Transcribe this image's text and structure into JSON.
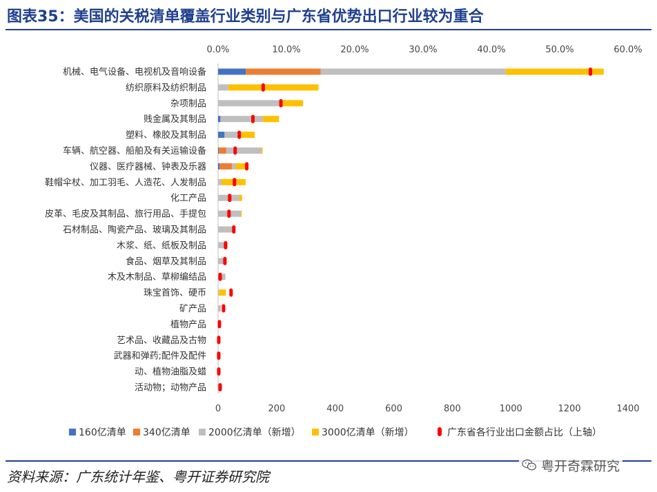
{
  "header": {
    "title": "图表35：美国的关税清单覆盖行业类别与广东省优势出口行业较为重合"
  },
  "footer": {
    "source": "资料来源：广东统计年鉴、粤开证券研究院",
    "watermark_text": "粤开奇霖研究",
    "watermark_icon": "wechat-icon"
  },
  "colors": {
    "title": "#1f3f8f",
    "s160": "#4472c4",
    "s340": "#ed7d31",
    "s2000": "#bfbfbf",
    "s3000": "#ffc000",
    "share": "#ff0000"
  },
  "chart_data": {
    "type": "bar",
    "orientation": "horizontal",
    "stacked": true,
    "categories": [
      "机械、电气设备、电视机及音响设备",
      "纺织原料及纺织制品",
      "杂项制品",
      "贱金属及其制品",
      "塑料、橡胶及其制品",
      "车辆、航空器、船舶及有关运输设备",
      "仪器、医疗器械、钟表及乐器",
      "鞋帽伞杖、加工羽毛、人造花、人发制品",
      "化工产品",
      "皮革、毛皮及其制品、旅行用品、手提包",
      "石材制品、陶瓷产品、玻璃及其制品",
      "木浆、纸、纸板及制品",
      "食品、烟草及其制品",
      "木及木制品、草柳编结品",
      "珠宝首饰、硬币",
      "矿产品",
      "植物产品",
      "艺术品、收藏品及古物",
      "武器和弹药;配件及配件",
      "动、植物油脂及蜡",
      "活动物；动物产品"
    ],
    "series": [
      {
        "name": "160亿清单",
        "axis": "bottom",
        "values": [
          95,
          0,
          0,
          8,
          22,
          3,
          5,
          0,
          0,
          0,
          0,
          0,
          0,
          0,
          0,
          0,
          0,
          0,
          0,
          0,
          0
        ]
      },
      {
        "name": "340亿清单",
        "axis": "bottom",
        "values": [
          255,
          0,
          0,
          0,
          0,
          25,
          42,
          0,
          0,
          0,
          0,
          0,
          0,
          0,
          0,
          0,
          0,
          0,
          0,
          0,
          0
        ]
      },
      {
        "name": "2000亿清单（新增）",
        "axis": "bottom",
        "values": [
          632,
          35,
          215,
          145,
          58,
          120,
          12,
          12,
          72,
          78,
          52,
          22,
          18,
          25,
          3,
          10,
          6,
          2,
          2,
          1,
          1
        ]
      },
      {
        "name": "3000亿清单（新增）",
        "axis": "bottom",
        "values": [
          335,
          308,
          75,
          55,
          45,
          4,
          37,
          82,
          10,
          3,
          0,
          10,
          0,
          0,
          24,
          0,
          0,
          0,
          0,
          0,
          0
        ]
      },
      {
        "name": "广东省各行业出口金额占比（上轴）",
        "axis": "top",
        "type": "marker",
        "values": [
          54.5,
          6.6,
          9.2,
          5.1,
          3.1,
          2.5,
          4.2,
          2.4,
          1.7,
          1.6,
          2.3,
          1.1,
          1.0,
          0.3,
          1.9,
          0.8,
          0.2,
          0.1,
          0.1,
          0.1,
          0.3
        ]
      }
    ],
    "top_axis": {
      "min": 0,
      "max": 60,
      "ticks": [
        "0.0%",
        "10.0%",
        "20.0%",
        "30.0%",
        "40.0%",
        "50.0%",
        "60.0%"
      ]
    },
    "bottom_axis": {
      "min": 0,
      "max": 1400,
      "ticks": [
        "0",
        "200",
        "400",
        "600",
        "800",
        "1000",
        "1200",
        "1400"
      ]
    },
    "legend_position": "bottom",
    "grid": false
  }
}
